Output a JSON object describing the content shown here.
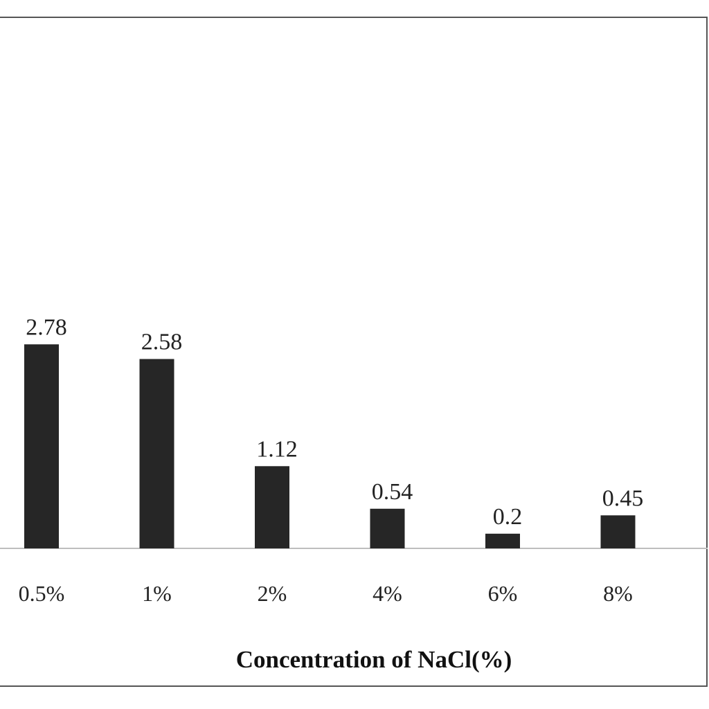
{
  "chart_data": {
    "type": "bar",
    "categories": [
      "0.5%",
      "1%",
      "2%",
      "4%",
      "6%",
      "8%"
    ],
    "values": [
      2.78,
      2.58,
      1.12,
      0.54,
      0.2,
      0.45
    ],
    "data_labels": [
      "2.78",
      "2.58",
      "1.12",
      "0.54",
      "0.2",
      "0.45"
    ],
    "xlabel": "Concentration of NaCl(%)",
    "ylabel": "",
    "ylim": [
      0,
      2.78
    ],
    "grid": false,
    "legend": "none",
    "bar_color": "#262626",
    "axis_color": "#bdbdbd"
  }
}
